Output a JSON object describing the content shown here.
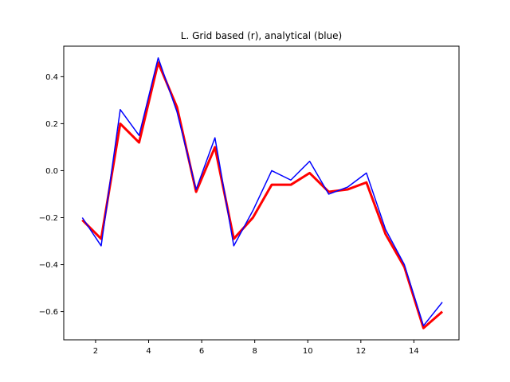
{
  "chart_data": {
    "type": "line",
    "title": "L. Grid based (r), analytical (blue)",
    "xlabel": "",
    "ylabel": "",
    "xlim": [
      0.8,
      15.7
    ],
    "ylim": [
      -0.72,
      0.53
    ],
    "xticks": [
      2,
      4,
      6,
      8,
      10,
      12,
      14
    ],
    "xtick_labels": [
      "2",
      "4",
      "6",
      "8",
      "10",
      "12",
      "14"
    ],
    "yticks": [
      -0.6,
      -0.4,
      -0.2,
      0.0,
      0.2,
      0.4
    ],
    "ytick_labels": [
      "−0.6",
      "−0.4",
      "−0.2",
      "0.0",
      "0.2",
      "0.4"
    ],
    "grid": false,
    "legend": false,
    "x": [
      1.5,
      2.21,
      2.93,
      3.64,
      4.36,
      5.07,
      5.79,
      6.5,
      7.21,
      7.93,
      8.64,
      9.36,
      10.07,
      10.79,
      11.5,
      12.21,
      12.93,
      13.64,
      14.36,
      15.07
    ],
    "series": [
      {
        "color": "#ff0000",
        "linewidth": 3,
        "values": [
          -0.21,
          -0.29,
          0.2,
          0.12,
          0.46,
          0.27,
          -0.09,
          0.1,
          -0.29,
          -0.2,
          -0.06,
          -0.06,
          -0.01,
          -0.09,
          -0.08,
          -0.05,
          -0.27,
          -0.41,
          -0.67,
          -0.6
        ]
      },
      {
        "color": "#0000ff",
        "linewidth": 1.5,
        "values": [
          -0.2,
          -0.32,
          0.26,
          0.15,
          0.48,
          0.25,
          -0.08,
          0.14,
          -0.32,
          -0.17,
          0.0,
          -0.04,
          0.04,
          -0.1,
          -0.07,
          -0.01,
          -0.25,
          -0.4,
          -0.66,
          -0.56
        ]
      }
    ]
  }
}
